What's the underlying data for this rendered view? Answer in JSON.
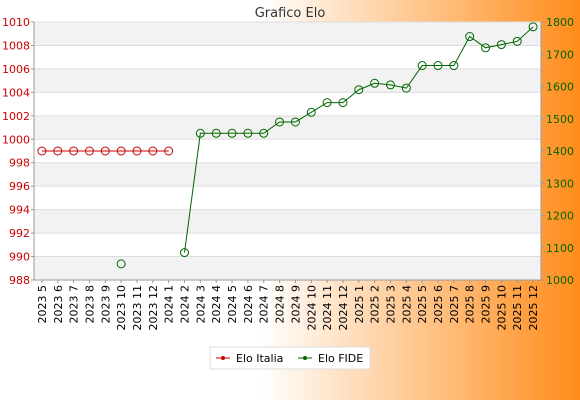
{
  "chart_data": {
    "type": "line",
    "title": "Grafico Elo",
    "categories": [
      "2023 5",
      "2023 6",
      "2023 7",
      "2023 8",
      "2023 9",
      "2023 10",
      "2023 11",
      "2023 12",
      "2024 1",
      "2024 2",
      "2024 3",
      "2024 4",
      "2024 5",
      "2024 6",
      "2024 7",
      "2024 8",
      "2024 9",
      "2024 10",
      "2024 11",
      "2024 12",
      "2025 1",
      "2025 2",
      "2025 3",
      "2025 4",
      "2025 5",
      "2025 6",
      "2025 7",
      "2025 8",
      "2025 9",
      "2025 10",
      "2025 11",
      "2025 12"
    ],
    "left_axis": {
      "min": 988,
      "max": 1010,
      "ticks": [
        988,
        990,
        992,
        994,
        996,
        998,
        1000,
        1002,
        1004,
        1006,
        1008,
        1010
      ],
      "color": "#cc0000"
    },
    "right_axis": {
      "min": 1000,
      "max": 1800,
      "ticks": [
        1000,
        1100,
        1200,
        1300,
        1400,
        1500,
        1600,
        1700,
        1800
      ],
      "color": "#006600"
    },
    "series": [
      {
        "name": "Elo Italia",
        "axis": "left",
        "color": "#cc0000",
        "values": [
          999,
          999,
          999,
          999,
          999,
          999,
          999,
          999,
          999,
          null,
          null,
          null,
          null,
          null,
          null,
          null,
          null,
          null,
          null,
          null,
          null,
          null,
          null,
          null,
          null,
          null,
          null,
          null,
          null,
          null,
          null,
          null
        ]
      },
      {
        "name": "Elo FIDE",
        "axis": "right",
        "color": "#006600",
        "values": [
          null,
          null,
          null,
          null,
          null,
          1050,
          null,
          null,
          null,
          1085,
          1455,
          1455,
          1455,
          1455,
          1455,
          1490,
          1490,
          1520,
          1550,
          1550,
          1590,
          1610,
          1605,
          1595,
          1665,
          1665,
          1665,
          1755,
          1720,
          1730,
          1740,
          1785
        ]
      }
    ],
    "grid": true,
    "legend": "bottom-center",
    "background": {
      "gradient_start": "#ffffff",
      "gradient_end": "#ff8c1a",
      "plot_band_light": "#ffffff",
      "plot_band_dark": "#f2f2f2"
    }
  }
}
